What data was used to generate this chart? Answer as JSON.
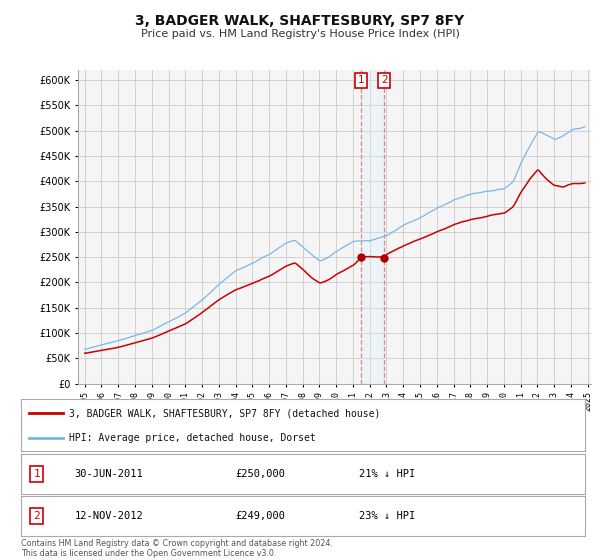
{
  "title": "3, BADGER WALK, SHAFTESBURY, SP7 8FY",
  "subtitle": "Price paid vs. HM Land Registry's House Price Index (HPI)",
  "ylim": [
    0,
    620000
  ],
  "yticks": [
    0,
    50000,
    100000,
    150000,
    200000,
    250000,
    300000,
    350000,
    400000,
    450000,
    500000,
    550000,
    600000
  ],
  "background_color": "#ffffff",
  "plot_bg_color": "#f5f5f5",
  "grid_color": "#cccccc",
  "hpi_color": "#7ab8e8",
  "price_color": "#cc0000",
  "marker_color": "#aa0000",
  "vline_color": "#dd8888",
  "shade_color": "#ddeeff",
  "marker1_year": 2011.49,
  "marker2_year": 2012.87,
  "sale1_price": 250000,
  "sale2_price": 249000,
  "legend_label_price": "3, BADGER WALK, SHAFTESBURY, SP7 8FY (detached house)",
  "legend_label_hpi": "HPI: Average price, detached house, Dorset"
}
